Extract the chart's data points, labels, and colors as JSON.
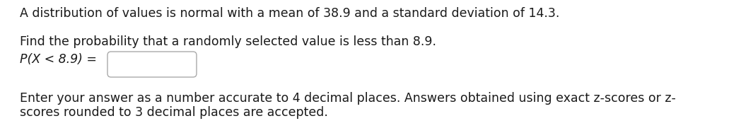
{
  "line1": "A distribution of values is normal with a mean of 38.9 and a standard deviation of 14.3.",
  "line2": "Find the probability that a randomly selected value is less than 8.9.",
  "line3_label": "P(X < 8.9) =",
  "line4": "Enter your answer as a number accurate to 4 decimal places. Answers obtained using exact z-scores or z-",
  "line5": "scores rounded to 3 decimal places are accepted.",
  "text_color": "#1a1a1a",
  "background_color": "#ffffff",
  "font_size": 12.5,
  "box_edge_color": "#aaaaaa",
  "box_face_color": "#ffffff"
}
